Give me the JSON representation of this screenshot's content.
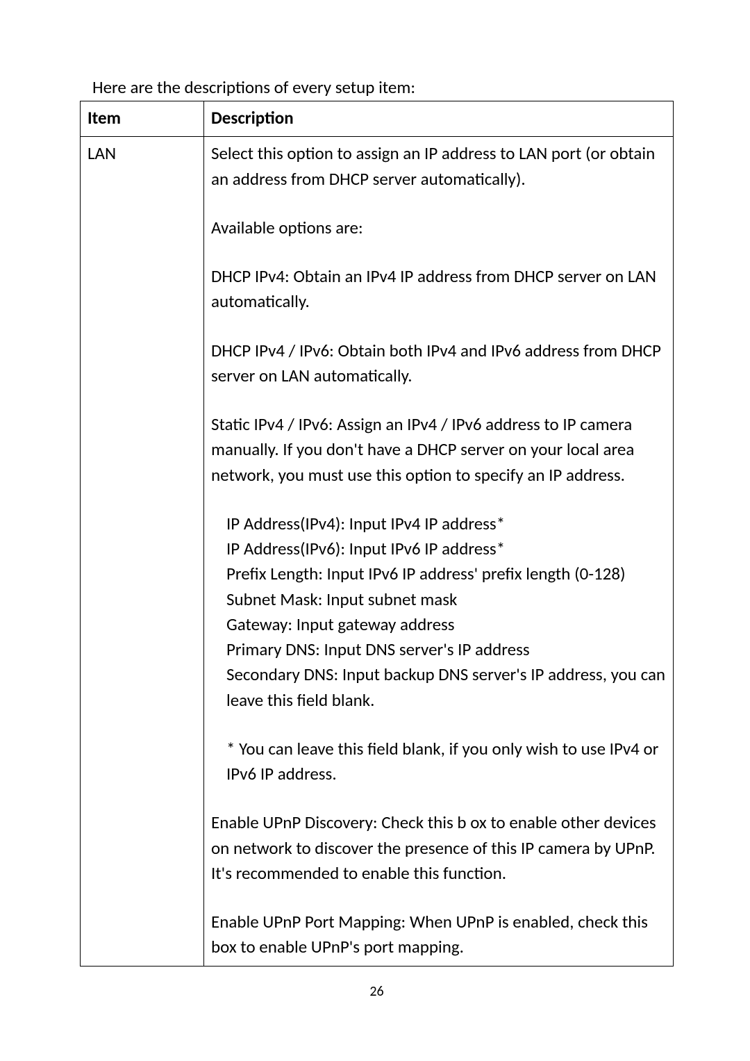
{
  "intro": "Here are the descriptions of every setup item:",
  "table": {
    "header": {
      "item": "Item",
      "desc": "Description"
    },
    "row": {
      "item": "LAN",
      "p1": "Select this option to assign an IP address to LAN port (or obtain an address from DHCP server automatically).",
      "p2": "Available options are:",
      "p3": "DHCP IPv4: Obtain an IPv4 IP address from DHCP server on LAN automatically.",
      "p4": "DHCP IPv4 / IPv6: Obtain both IPv4 and IPv6 address from DHCP server on LAN automatically.",
      "p5": "Static IPv4 / IPv6: Assign an IPv4 / IPv6 address to IP camera manually. If you don't have a DHCP server on your local area network, you must use this option to specify an IP address.",
      "list": {
        "l1": "IP Address(IPv4): Input IPv4 IP address*",
        "l2": "IP Address(IPv6): Input IPv6 IP address*",
        "l3": "Prefix Length: Input IPv6 IP address' prefix length (0-128)",
        "l4": "Subnet Mask: Input subnet mask",
        "l5": "Gateway: Input gateway address",
        "l6": "Primary DNS: Input DNS server's IP address",
        "l7": "Secondary DNS: Input backup DNS server's IP address, you can leave this field blank."
      },
      "note": "* You can leave this field blank, if you only wish to use IPv4 or IPv6 IP address.",
      "p6": "Enable UPnP Discovery: Check this b ox to enable other devices on network to discover the presence of this IP camera by UPnP. It's recommended to enable this function.",
      "p7": "Enable UPnP Port Mapping: When UPnP is enabled, check this box to enable UPnP's port mapping."
    }
  },
  "pageNumber": "26"
}
